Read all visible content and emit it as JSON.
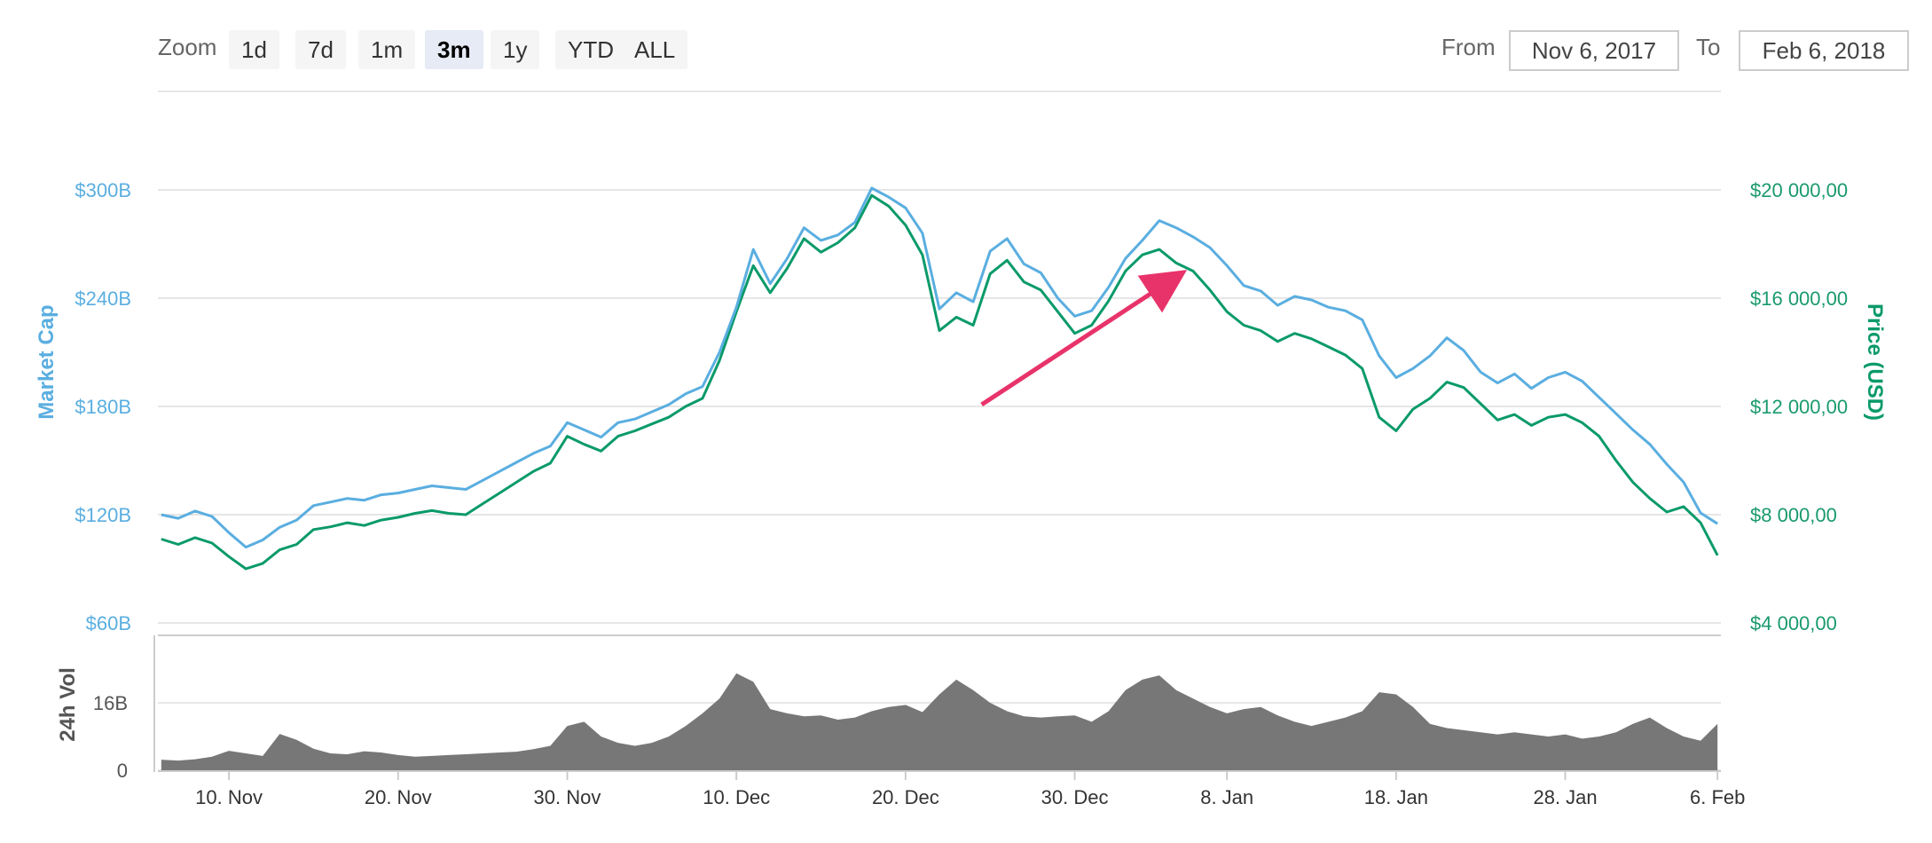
{
  "toolbar": {
    "zoom_label": "Zoom",
    "zoom_buttons": [
      "1d",
      "7d",
      "1m",
      "3m",
      "1y",
      "YTD",
      "ALL"
    ],
    "active_zoom": "3m",
    "from_label": "From",
    "from_value": "Nov 6, 2017",
    "to_label": "To",
    "to_value": "Feb 6, 2018"
  },
  "chart_data": {
    "type": "line",
    "x_tick_labels": [
      "10. Nov",
      "20. Nov",
      "30. Nov",
      "10. Dec",
      "20. Dec",
      "30. Dec",
      "8. Jan",
      "18. Jan",
      "28. Jan",
      "6. Feb"
    ],
    "x_ticks_days": [
      4,
      14,
      24,
      34,
      44,
      54,
      63,
      73,
      83,
      92
    ],
    "x_range_days": [
      -0.2,
      92.2
    ],
    "y_left": {
      "label": "Market Cap",
      "ticks": [
        "$60B",
        "$120B",
        "$180B",
        "$240B",
        "$300B"
      ],
      "tick_values": [
        60,
        120,
        180,
        240,
        300
      ],
      "range": [
        60,
        300
      ]
    },
    "y_right": {
      "label": "Price (USD)",
      "ticks": [
        "$4 000,00",
        "$8 000,00",
        "$12 000,00",
        "$16 000,00",
        "$20 000,00"
      ],
      "tick_values": [
        4000,
        8000,
        12000,
        16000,
        20000
      ],
      "range": [
        4000,
        20000
      ]
    },
    "volume": {
      "label": "24h Vol",
      "ticks": [
        "0",
        "16B"
      ],
      "tick_values": [
        0,
        16
      ]
    },
    "colors": {
      "market_cap": "#5aaee0",
      "price": "#0a9a6a",
      "volume": "#777777",
      "annotation_arrow": "#e8336a"
    },
    "series": [
      {
        "name": "Market Cap",
        "axis": "left",
        "x": [
          0,
          1,
          2,
          3,
          4,
          5,
          6,
          7,
          8,
          9,
          10,
          11,
          12,
          13,
          14,
          15,
          16,
          17,
          18,
          19,
          20,
          21,
          22,
          23,
          24,
          25,
          26,
          27,
          28,
          29,
          30,
          31,
          32,
          33,
          34,
          35,
          36,
          37,
          38,
          39,
          40,
          41,
          42,
          43,
          44,
          45,
          46,
          47,
          48,
          49,
          50,
          51,
          52,
          53,
          54,
          55,
          56,
          57,
          58,
          59,
          60,
          61,
          62,
          63,
          64,
          65,
          66,
          67,
          68,
          69,
          70,
          71,
          72,
          73,
          74,
          75,
          76,
          77,
          78,
          79,
          80,
          81,
          82,
          83,
          84,
          85,
          86,
          87,
          88,
          89,
          90,
          91,
          92
        ],
        "values": [
          120,
          118,
          122,
          119,
          110,
          102,
          106,
          113,
          117,
          125,
          127,
          129,
          128,
          131,
          132,
          134,
          136,
          135,
          134,
          139,
          144,
          149,
          154,
          158,
          171,
          167,
          163,
          171,
          173,
          177,
          181,
          187,
          191,
          210,
          235,
          267,
          248,
          262,
          279,
          272,
          275,
          282,
          301,
          296,
          290,
          276,
          234,
          243,
          238,
          266,
          273,
          259,
          254,
          240,
          230,
          233,
          246,
          262,
          272,
          283,
          279,
          274,
          268,
          258,
          247,
          244,
          236,
          241,
          239,
          235,
          233,
          228,
          208,
          196,
          201,
          208,
          218,
          211,
          199,
          193,
          198,
          190,
          196,
          199,
          194,
          185,
          176,
          167,
          159,
          148,
          138,
          121,
          115
        ]
      },
      {
        "name": "Price (USD)",
        "axis": "right",
        "x": [
          0,
          1,
          2,
          3,
          4,
          5,
          6,
          7,
          8,
          9,
          10,
          11,
          12,
          13,
          14,
          15,
          16,
          17,
          18,
          19,
          20,
          21,
          22,
          23,
          24,
          25,
          26,
          27,
          28,
          29,
          30,
          31,
          32,
          33,
          34,
          35,
          36,
          37,
          38,
          39,
          40,
          41,
          42,
          43,
          44,
          45,
          46,
          47,
          48,
          49,
          50,
          51,
          52,
          53,
          54,
          55,
          56,
          57,
          58,
          59,
          60,
          61,
          62,
          63,
          64,
          65,
          66,
          67,
          68,
          69,
          70,
          71,
          72,
          73,
          74,
          75,
          76,
          77,
          78,
          79,
          80,
          81,
          82,
          83,
          84,
          85,
          86,
          87,
          88,
          89,
          90,
          91,
          92
        ],
        "values": [
          7100,
          6900,
          7150,
          6950,
          6450,
          6000,
          6200,
          6700,
          6900,
          7450,
          7550,
          7700,
          7600,
          7800,
          7900,
          8050,
          8150,
          8050,
          8000,
          8400,
          8800,
          9200,
          9600,
          9900,
          10900,
          10600,
          10350,
          10900,
          11100,
          11350,
          11600,
          12000,
          12300,
          13700,
          15500,
          17200,
          16200,
          17100,
          18200,
          17700,
          18050,
          18600,
          19800,
          19400,
          18700,
          17600,
          14800,
          15300,
          15000,
          16900,
          17400,
          16600,
          16300,
          15500,
          14700,
          15000,
          15900,
          17000,
          17600,
          17800,
          17300,
          17000,
          16300,
          15500,
          15000,
          14800,
          14400,
          14700,
          14500,
          14200,
          13900,
          13400,
          11600,
          11100,
          11900,
          12300,
          12900,
          12700,
          12100,
          11500,
          11700,
          11300,
          11600,
          11700,
          11400,
          10900,
          10000,
          9200,
          8600,
          8100,
          8300,
          7700,
          6500
        ]
      },
      {
        "name": "24h Vol",
        "axis": "volume",
        "x": [
          0,
          1,
          2,
          3,
          4,
          5,
          6,
          7,
          8,
          9,
          10,
          11,
          12,
          13,
          14,
          15,
          16,
          17,
          18,
          19,
          20,
          21,
          22,
          23,
          24,
          25,
          26,
          27,
          28,
          29,
          30,
          31,
          32,
          33,
          34,
          35,
          36,
          37,
          38,
          39,
          40,
          41,
          42,
          43,
          44,
          45,
          46,
          47,
          48,
          49,
          50,
          51,
          52,
          53,
          54,
          55,
          56,
          57,
          58,
          59,
          60,
          61,
          62,
          63,
          64,
          65,
          66,
          67,
          68,
          69,
          70,
          71,
          72,
          73,
          74,
          75,
          76,
          77,
          78,
          79,
          80,
          81,
          82,
          83,
          84,
          85,
          86,
          87,
          88,
          89,
          90,
          91,
          92
        ],
        "values": [
          2.5,
          2.3,
          2.6,
          3.2,
          4.6,
          4.0,
          3.4,
          8.6,
          7.2,
          5.1,
          4.0,
          3.8,
          4.5,
          4.2,
          3.6,
          3.2,
          3.4,
          3.6,
          3.8,
          4.0,
          4.2,
          4.4,
          5.0,
          5.8,
          10.5,
          11.5,
          8.0,
          6.5,
          5.8,
          6.5,
          8.0,
          10.5,
          13.5,
          17.0,
          23.0,
          21.0,
          14.5,
          13.5,
          12.8,
          13.0,
          12.0,
          12.5,
          14.0,
          15.0,
          15.5,
          13.8,
          18.0,
          21.5,
          19.0,
          16.0,
          14.0,
          12.8,
          12.5,
          12.8,
          13.0,
          11.5,
          14.0,
          19.0,
          21.5,
          22.5,
          19.0,
          17.0,
          15.0,
          13.5,
          14.5,
          15.0,
          13.0,
          11.5,
          10.5,
          11.5,
          12.5,
          14.0,
          18.5,
          18.0,
          15.0,
          11.0,
          10.0,
          9.5,
          9.0,
          8.5,
          9.0,
          8.5,
          8.0,
          8.5,
          7.5,
          8.0,
          9.0,
          11.0,
          12.5,
          10.0,
          8.0,
          7.0,
          11.0
        ]
      }
    ],
    "annotations": [
      {
        "type": "arrow",
        "from": {
          "x": 48.5,
          "y_left": 181
        },
        "to": {
          "x": 60.2,
          "y_left": 253
        }
      }
    ],
    "grid": true,
    "legend": "none"
  }
}
